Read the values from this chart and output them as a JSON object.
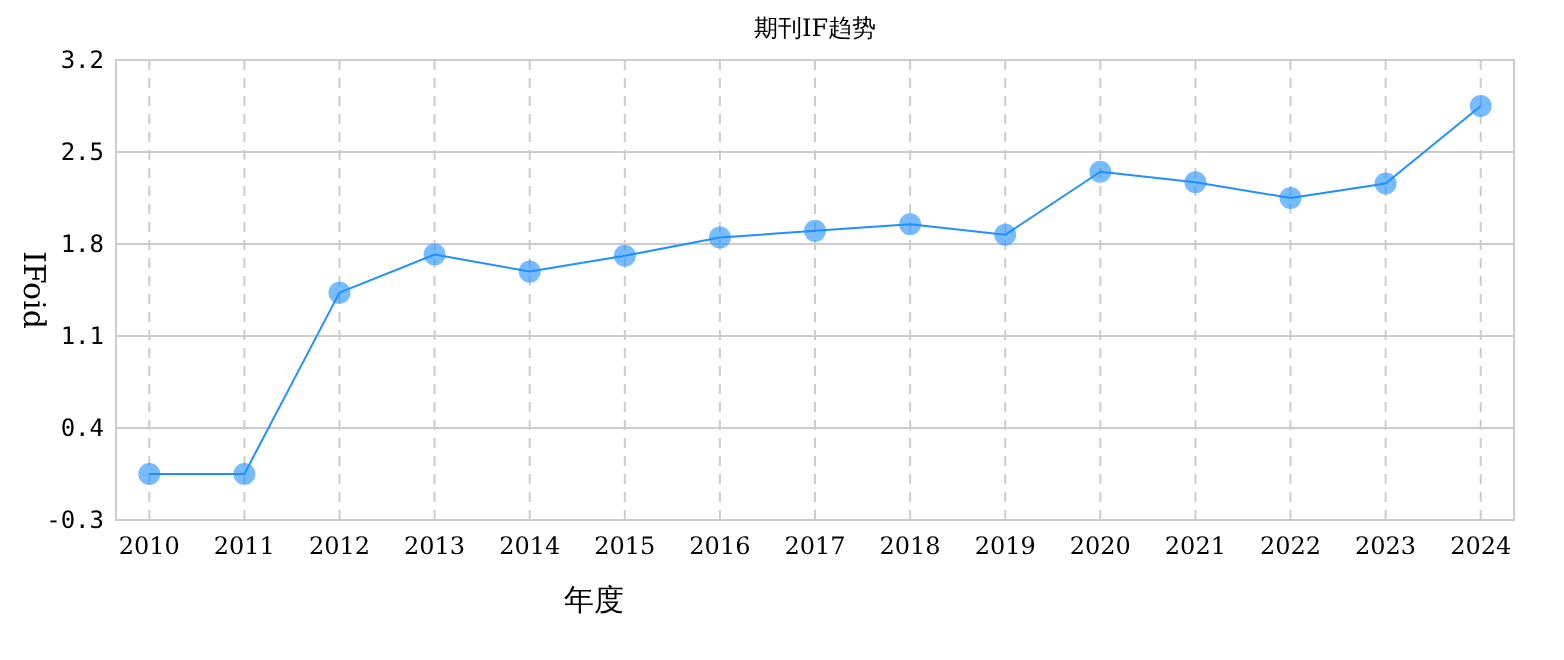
{
  "chart_data": {
    "type": "line",
    "title": "期刊IF趋势",
    "xlabel": "年度",
    "ylabel": "IFoid",
    "categories": [
      "2010",
      "2011",
      "2012",
      "2013",
      "2014",
      "2015",
      "2016",
      "2017",
      "2018",
      "2019",
      "2020",
      "2021",
      "2022",
      "2023",
      "2024"
    ],
    "series": [
      {
        "color": "#1e90ff",
        "values": [
          0.05,
          0.05,
          1.43,
          1.72,
          1.59,
          1.71,
          1.85,
          1.9,
          1.95,
          1.87,
          2.35,
          2.27,
          2.15,
          2.26,
          2.85
        ]
      }
    ],
    "ylim": [
      -0.3,
      3.2
    ],
    "yticks": [
      -0.3,
      0.4,
      1.1,
      1.8,
      2.5,
      3.2
    ],
    "grid": true,
    "marker": "circle"
  }
}
